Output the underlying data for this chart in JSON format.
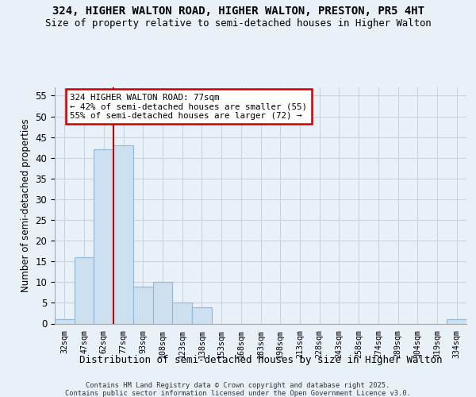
{
  "title_line1": "324, HIGHER WALTON ROAD, HIGHER WALTON, PRESTON, PR5 4HT",
  "title_line2": "Size of property relative to semi-detached houses in Higher Walton",
  "xlabel": "Distribution of semi-detached houses by size in Higher Walton",
  "ylabel": "Number of semi-detached properties",
  "categories": [
    "32sqm",
    "47sqm",
    "62sqm",
    "77sqm",
    "93sqm",
    "108sqm",
    "123sqm",
    "138sqm",
    "153sqm",
    "168sqm",
    "183sqm",
    "198sqm",
    "213sqm",
    "228sqm",
    "243sqm",
    "258sqm",
    "274sqm",
    "289sqm",
    "304sqm",
    "319sqm",
    "334sqm"
  ],
  "values": [
    1,
    16,
    42,
    43,
    9,
    10,
    5,
    4,
    0,
    0,
    0,
    0,
    0,
    0,
    0,
    0,
    0,
    0,
    0,
    0,
    1
  ],
  "bar_color": "#cce0f0",
  "bar_edge_color": "#90b8d8",
  "grid_color": "#c8d4e0",
  "vline_color": "#cc0000",
  "annotation_text": "324 HIGHER WALTON ROAD: 77sqm\n← 42% of semi-detached houses are smaller (55)\n55% of semi-detached houses are larger (72) →",
  "annotation_box_color": "#ffffff",
  "annotation_border_color": "#cc0000",
  "ylim": [
    0,
    57
  ],
  "yticks": [
    0,
    5,
    10,
    15,
    20,
    25,
    30,
    35,
    40,
    45,
    50,
    55
  ],
  "footer_line1": "Contains HM Land Registry data © Crown copyright and database right 2025.",
  "footer_line2": "Contains public sector information licensed under the Open Government Licence v3.0.",
  "bg_color": "#e8f0f8"
}
